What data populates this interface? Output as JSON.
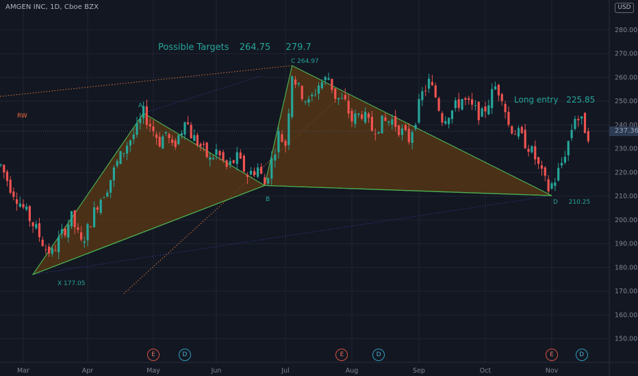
{
  "header": {
    "symbol": "AMGEN INC",
    "interval": "1D",
    "exchange": "Cboe BZX",
    "currency": "USD"
  },
  "last_price": "237.36",
  "annotations": {
    "targets_label": "Possible Targets",
    "target1": "264.75",
    "target2": "279.7",
    "long_entry_label": "Long entry",
    "long_entry_value": "225.85",
    "rw": "RW",
    "pt_A": "A",
    "pt_B": "B",
    "pt_C": "C",
    "pt_C_value": "264.97",
    "pt_D": "D",
    "pt_D_value": "210.25",
    "pt_X": "X",
    "pt_X_value": "177.05"
  },
  "events": [
    {
      "type": "E",
      "label": "E",
      "month_index": 2.0
    },
    {
      "type": "D",
      "label": "D",
      "month_index": 2.5
    },
    {
      "type": "E",
      "label": "E",
      "month_index": 4.85
    },
    {
      "type": "D",
      "label": "D",
      "month_index": 5.4
    },
    {
      "type": "E",
      "label": "E",
      "month_index": 8.0
    },
    {
      "type": "D",
      "label": "D",
      "month_index": 8.45
    }
  ],
  "colors": {
    "background": "#131722",
    "up": "#26a69a",
    "down": "#ef5350",
    "pattern_line": "#4caf50",
    "pattern_fill": "#5c3a14",
    "target_line": "#e07b39",
    "dotted_blue": "#2d3a8c",
    "label_text": "#26a69a"
  },
  "chart_data": {
    "type": "candlestick",
    "title": "AMGEN INC, 1D, Cboe BZX",
    "x_ticks": [
      "Mar",
      "Apr",
      "May",
      "Jun",
      "Jul",
      "Aug",
      "Sep",
      "Oct",
      "Nov"
    ],
    "y_ticks": [
      150,
      160,
      170,
      180,
      190,
      200,
      210,
      220,
      230,
      240,
      250,
      260,
      270,
      280
    ],
    "ylim": [
      143,
      292
    ],
    "y_unit": "USD",
    "xlim_month_index": [
      -0.35,
      8.9
    ],
    "harmonic_pattern": {
      "X": {
        "month_index": 0.15,
        "price": 177.05
      },
      "A": {
        "month_index": 1.85,
        "price": 245.0
      },
      "B": {
        "month_index": 3.7,
        "price": 214.5
      },
      "C": {
        "month_index": 4.1,
        "price": 264.97
      },
      "D": {
        "month_index": 8.0,
        "price": 210.25
      }
    },
    "targets": [
      264.75,
      279.7
    ],
    "long_entry": 225.85,
    "close_path": [
      [
        -0.35,
        223
      ],
      [
        -0.2,
        214
      ],
      [
        0.0,
        205
      ],
      [
        0.2,
        196
      ],
      [
        0.35,
        188
      ],
      [
        0.45,
        186
      ],
      [
        0.6,
        194
      ],
      [
        0.75,
        201
      ],
      [
        0.9,
        190
      ],
      [
        1.0,
        196
      ],
      [
        1.15,
        207
      ],
      [
        1.3,
        214
      ],
      [
        1.45,
        224
      ],
      [
        1.6,
        232
      ],
      [
        1.75,
        238
      ],
      [
        1.85,
        245
      ],
      [
        1.95,
        240
      ],
      [
        2.1,
        233
      ],
      [
        2.2,
        237
      ],
      [
        2.3,
        230
      ],
      [
        2.45,
        238
      ],
      [
        2.5,
        244
      ],
      [
        2.6,
        236
      ],
      [
        2.75,
        231
      ],
      [
        2.9,
        225
      ],
      [
        3.0,
        229
      ],
      [
        3.15,
        222
      ],
      [
        3.3,
        226
      ],
      [
        3.45,
        219
      ],
      [
        3.6,
        222
      ],
      [
        3.7,
        215
      ],
      [
        3.8,
        225
      ],
      [
        3.9,
        236
      ],
      [
        4.0,
        232
      ],
      [
        4.1,
        262
      ],
      [
        4.2,
        255
      ],
      [
        4.35,
        249
      ],
      [
        4.5,
        257
      ],
      [
        4.65,
        260
      ],
      [
        4.75,
        252
      ],
      [
        4.9,
        249
      ],
      [
        5.0,
        242
      ],
      [
        5.15,
        245
      ],
      [
        5.3,
        238
      ],
      [
        5.45,
        241
      ],
      [
        5.6,
        242
      ],
      [
        5.75,
        237
      ],
      [
        5.85,
        234
      ],
      [
        5.95,
        243
      ],
      [
        6.05,
        253
      ],
      [
        6.15,
        258
      ],
      [
        6.25,
        252
      ],
      [
        6.35,
        243
      ],
      [
        6.5,
        246
      ],
      [
        6.65,
        251
      ],
      [
        6.8,
        247
      ],
      [
        6.95,
        244
      ],
      [
        7.05,
        250
      ],
      [
        7.15,
        256
      ],
      [
        7.25,
        253
      ],
      [
        7.35,
        240
      ],
      [
        7.5,
        236
      ],
      [
        7.65,
        231
      ],
      [
        7.75,
        226
      ],
      [
        7.85,
        219
      ],
      [
        7.95,
        213
      ],
      [
        8.05,
        217
      ],
      [
        8.15,
        224
      ],
      [
        8.25,
        233
      ],
      [
        8.35,
        244
      ],
      [
        8.45,
        241
      ],
      [
        8.55,
        236
      ]
    ]
  }
}
